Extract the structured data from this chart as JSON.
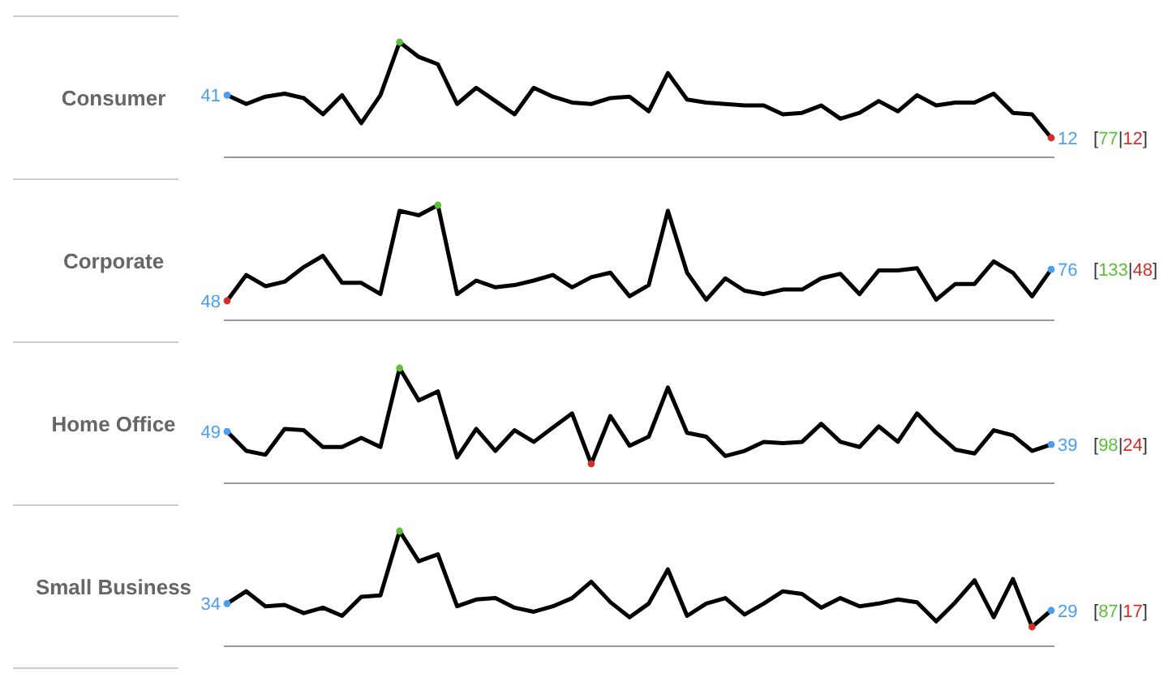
{
  "chart_data": [
    {
      "type": "line",
      "title": "Consumer",
      "categories": [
        null,
        null,
        null,
        null,
        null,
        null,
        null,
        null,
        null,
        null,
        null,
        null,
        null,
        null,
        null,
        null,
        null,
        null,
        null,
        null,
        null,
        null,
        null,
        null,
        null,
        null,
        null,
        null,
        null,
        null,
        null,
        null,
        null,
        null,
        null,
        null,
        null,
        null,
        null,
        null,
        null,
        null,
        null,
        null
      ],
      "series": [
        {
          "color": "#000000",
          "values": [
            41,
            35,
            40,
            42,
            39,
            28,
            41,
            22,
            41,
            77,
            67,
            62,
            35,
            46,
            37,
            28,
            46,
            40,
            36,
            35,
            39,
            40,
            30,
            56,
            38,
            36,
            35,
            34,
            34,
            28,
            29,
            34,
            25,
            29,
            37,
            30,
            41,
            34,
            36,
            36,
            42,
            29,
            28,
            12
          ],
          "colors": [
            "#4a9ff5",
            null,
            null,
            null,
            null,
            null,
            null,
            null,
            null,
            "#5bc236",
            null,
            null,
            null,
            null,
            null,
            null,
            null,
            null,
            null,
            null,
            null,
            null,
            null,
            null,
            null,
            null,
            null,
            null,
            null,
            null,
            null,
            null,
            null,
            null,
            null,
            null,
            null,
            null,
            null,
            null,
            null,
            null,
            null,
            "#d0302a"
          ],
          "value_labels": [
            "41",
            null,
            null,
            null,
            null,
            null,
            null,
            null,
            null,
            null,
            null,
            null,
            null,
            null,
            null,
            null,
            null,
            null,
            null,
            null,
            null,
            null,
            null,
            null,
            null,
            null,
            null,
            null,
            null,
            null,
            null,
            null,
            null,
            null,
            null,
            null,
            null,
            null,
            null,
            null,
            null,
            null,
            null,
            "12"
          ]
        }
      ],
      "annotations": [
        "[77|12]"
      ]
    },
    {
      "type": "line",
      "title": "Corporate",
      "categories": [
        null,
        null,
        null,
        null,
        null,
        null,
        null,
        null,
        null,
        null,
        null,
        null,
        null,
        null,
        null,
        null,
        null,
        null,
        null,
        null,
        null,
        null,
        null,
        null,
        null,
        null,
        null,
        null,
        null,
        null,
        null,
        null,
        null,
        null,
        null,
        null,
        null,
        null,
        null,
        null,
        null,
        null,
        null,
        null
      ],
      "series": [
        {
          "color": "#000000",
          "values": [
            48,
            71,
            61,
            65,
            78,
            88,
            64,
            64,
            54,
            128,
            124,
            133,
            54,
            66,
            60,
            62,
            66,
            71,
            60,
            69,
            73,
            52,
            62,
            128,
            73,
            49,
            68,
            57,
            54,
            58,
            58,
            68,
            72,
            54,
            75,
            75,
            77,
            49,
            63,
            63,
            83,
            73,
            52,
            76
          ],
          "colors": [
            "#d0302a",
            null,
            null,
            null,
            null,
            null,
            null,
            null,
            null,
            null,
            null,
            "#5bc236",
            null,
            null,
            null,
            null,
            null,
            null,
            null,
            null,
            null,
            null,
            null,
            null,
            null,
            null,
            null,
            null,
            null,
            null,
            null,
            null,
            null,
            null,
            null,
            null,
            null,
            null,
            null,
            null,
            null,
            null,
            null,
            "#4a9ff5"
          ],
          "value_labels": [
            "48",
            null,
            null,
            null,
            null,
            null,
            null,
            null,
            null,
            null,
            null,
            null,
            null,
            null,
            null,
            null,
            null,
            null,
            null,
            null,
            null,
            null,
            null,
            null,
            null,
            null,
            null,
            null,
            null,
            null,
            null,
            null,
            null,
            null,
            null,
            null,
            null,
            null,
            null,
            null,
            null,
            null,
            null,
            "76"
          ]
        }
      ],
      "annotations": [
        "[133|48]"
      ]
    },
    {
      "type": "line",
      "title": "Home Office",
      "categories": [
        null,
        null,
        null,
        null,
        null,
        null,
        null,
        null,
        null,
        null,
        null,
        null,
        null,
        null,
        null,
        null,
        null,
        null,
        null,
        null,
        null,
        null,
        null,
        null,
        null,
        null,
        null,
        null,
        null,
        null,
        null,
        null,
        null,
        null,
        null,
        null,
        null,
        null,
        null,
        null,
        null,
        null,
        null,
        null
      ],
      "series": [
        {
          "color": "#000000",
          "values": [
            49,
            34,
            31,
            51,
            50,
            37,
            37,
            44,
            37,
            98,
            73,
            80,
            29,
            51,
            34,
            50,
            41,
            52,
            63,
            24,
            61,
            38,
            45,
            83,
            48,
            45,
            30,
            34,
            41,
            40,
            41,
            55,
            41,
            37,
            53,
            41,
            63,
            48,
            35,
            32,
            50,
            46,
            34,
            39
          ],
          "colors": [
            "#4a9ff5",
            null,
            null,
            null,
            null,
            null,
            null,
            null,
            null,
            "#5bc236",
            null,
            null,
            null,
            null,
            null,
            null,
            null,
            null,
            null,
            "#d0302a",
            null,
            null,
            null,
            null,
            null,
            null,
            null,
            null,
            null,
            null,
            null,
            null,
            null,
            null,
            null,
            null,
            null,
            null,
            null,
            null,
            null,
            null,
            null,
            "#4a9ff5"
          ],
          "value_labels": [
            "49",
            null,
            null,
            null,
            null,
            null,
            null,
            null,
            null,
            null,
            null,
            null,
            null,
            null,
            null,
            null,
            null,
            null,
            null,
            null,
            null,
            null,
            null,
            null,
            null,
            null,
            null,
            null,
            null,
            null,
            null,
            null,
            null,
            null,
            null,
            null,
            null,
            null,
            null,
            null,
            null,
            null,
            null,
            "39"
          ]
        }
      ],
      "annotations": [
        "[98|24]"
      ]
    },
    {
      "type": "line",
      "title": "Small Business",
      "categories": [
        null,
        null,
        null,
        null,
        null,
        null,
        null,
        null,
        null,
        null,
        null,
        null,
        null,
        null,
        null,
        null,
        null,
        null,
        null,
        null,
        null,
        null,
        null,
        null,
        null,
        null,
        null,
        null,
        null,
        null,
        null,
        null,
        null,
        null,
        null,
        null,
        null,
        null,
        null,
        null,
        null,
        null,
        null,
        null
      ],
      "series": [
        {
          "color": "#000000",
          "values": [
            34,
            43,
            32,
            33,
            27,
            31,
            25,
            39,
            40,
            87,
            65,
            70,
            32,
            37,
            38,
            31,
            28,
            32,
            38,
            50,
            35,
            24,
            34,
            59,
            25,
            34,
            38,
            26,
            34,
            43,
            41,
            31,
            38,
            32,
            34,
            37,
            35,
            21,
            35,
            51,
            24,
            52,
            17,
            29
          ],
          "colors": [
            "#4a9ff5",
            null,
            null,
            null,
            null,
            null,
            null,
            null,
            null,
            "#5bc236",
            null,
            null,
            null,
            null,
            null,
            null,
            null,
            null,
            null,
            null,
            null,
            null,
            null,
            null,
            null,
            null,
            null,
            null,
            null,
            null,
            null,
            null,
            null,
            null,
            null,
            null,
            null,
            null,
            null,
            null,
            null,
            null,
            "#d0302a",
            "#4a9ff5"
          ],
          "value_labels": [
            "34",
            null,
            null,
            null,
            null,
            null,
            null,
            null,
            null,
            null,
            null,
            null,
            null,
            null,
            null,
            null,
            null,
            null,
            null,
            null,
            null,
            null,
            null,
            null,
            null,
            null,
            null,
            null,
            null,
            null,
            null,
            null,
            null,
            null,
            null,
            null,
            null,
            null,
            null,
            null,
            null,
            null,
            null,
            "29"
          ]
        }
      ],
      "annotations": [
        "[87|17]"
      ]
    }
  ]
}
